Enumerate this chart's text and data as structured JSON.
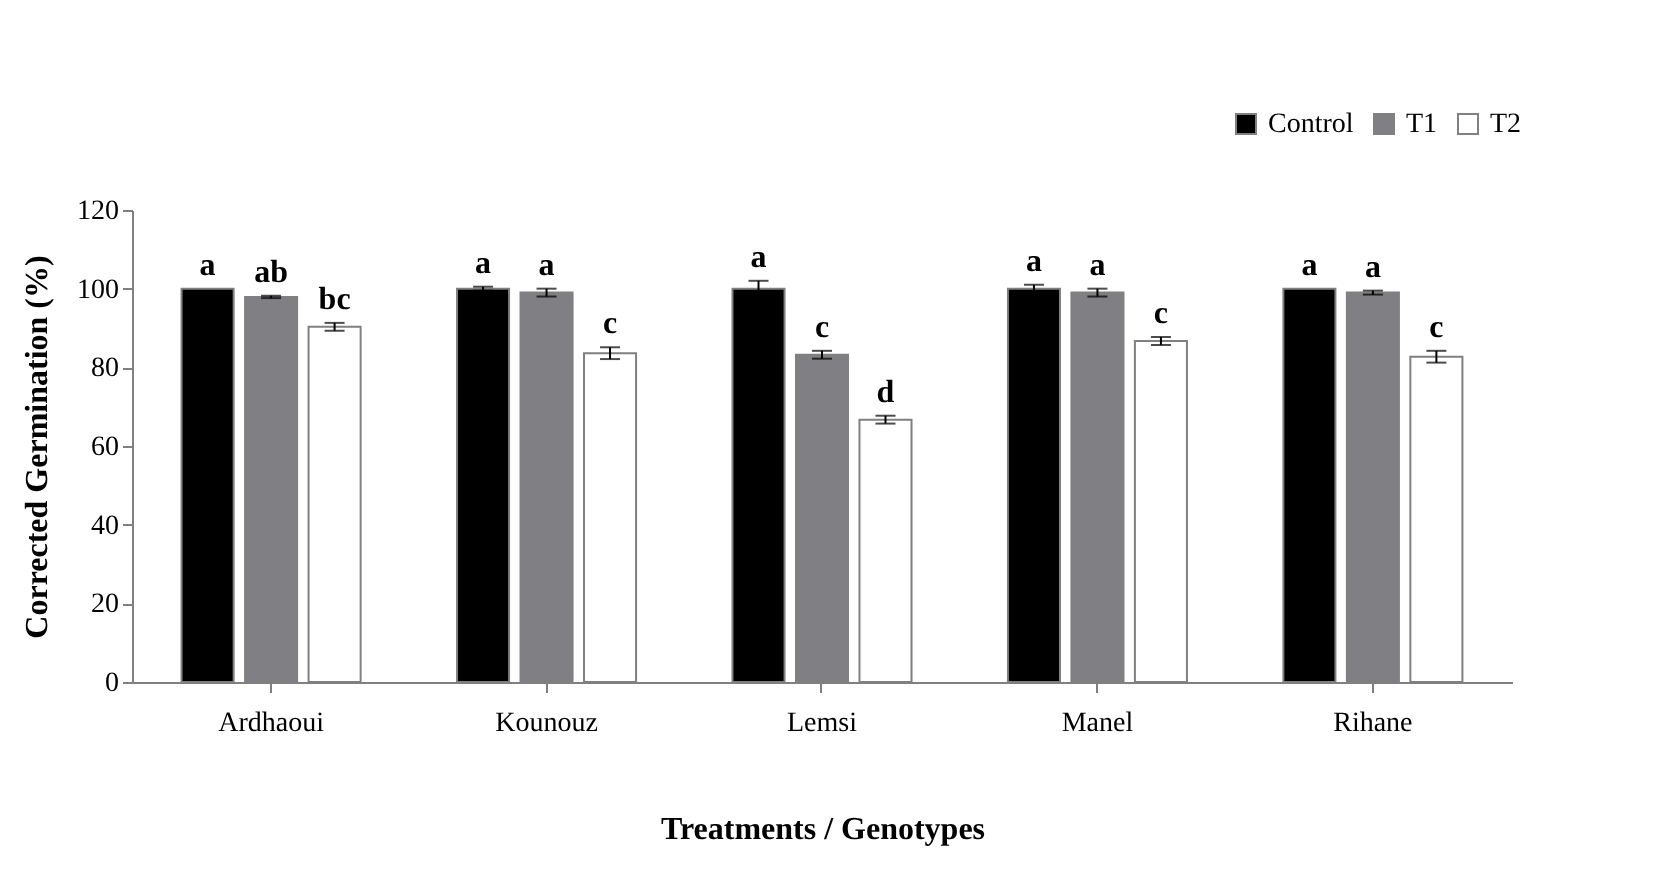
{
  "chart_data": {
    "type": "bar",
    "xlabel": "Treatments / Genotypes",
    "ylabel": "Corrected Germination (%)",
    "categories": [
      "Ardhaoui",
      "Kounouz",
      "Lemsi",
      "Manel",
      "Rihane"
    ],
    "series": [
      {
        "name": "Control",
        "color": "#000000",
        "values": [
          100,
          100,
          100,
          100,
          100
        ],
        "errors": [
          null,
          0.5,
          2,
          1,
          null
        ],
        "value_labels": [
          "a",
          "a",
          "a",
          "a",
          "a"
        ]
      },
      {
        "name": "T1",
        "color": "#7f7f84",
        "values": [
          97.9,
          99,
          83.2,
          99,
          99
        ],
        "errors": [
          0.3,
          1,
          1,
          1,
          0.5
        ],
        "value_labels": [
          "ab",
          "a",
          "c",
          "a",
          "a"
        ]
      },
      {
        "name": "T2",
        "color": "#ffffff",
        "values": [
          90.3,
          83.6,
          66.7,
          86.7,
          82.7
        ],
        "errors": [
          1,
          1.5,
          1,
          1,
          1.5
        ],
        "value_labels": [
          "bc",
          "c",
          "d",
          "c",
          "c"
        ]
      }
    ],
    "ylim": [
      0,
      120
    ],
    "yticks": [
      0,
      20,
      40,
      60,
      80,
      100,
      120
    ],
    "grid": false,
    "legend": "top right"
  }
}
